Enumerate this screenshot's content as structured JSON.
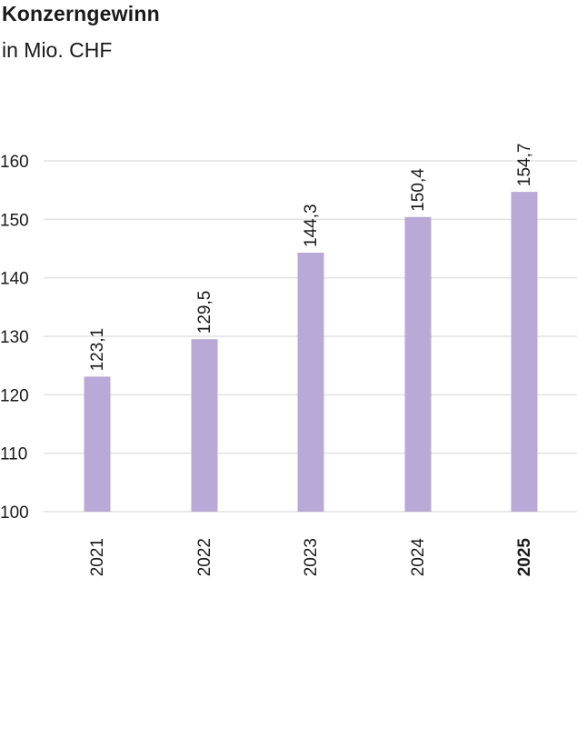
{
  "header": {
    "title": "Konzerngewinn",
    "subtitle": "in Mio. CHF"
  },
  "chart_data": {
    "type": "bar",
    "title": "Konzerngewinn",
    "subtitle": "in Mio. CHF",
    "xlabel": "",
    "ylabel": "",
    "categories": [
      "2021",
      "2022",
      "2023",
      "2024",
      "2025"
    ],
    "values": [
      123.1,
      129.5,
      144.3,
      150.4,
      154.7
    ],
    "value_labels": [
      "123,1",
      "129,5",
      "144,3",
      "150,4",
      "154,7"
    ],
    "highlighted_category": "2025",
    "ylim": [
      100,
      160
    ],
    "yticks": [
      100,
      110,
      120,
      130,
      140,
      150,
      160
    ],
    "grid": true,
    "bar_color": "#b8a9d6",
    "grid_color": "#e2e2e2",
    "text_color": "#1a1a1a"
  }
}
